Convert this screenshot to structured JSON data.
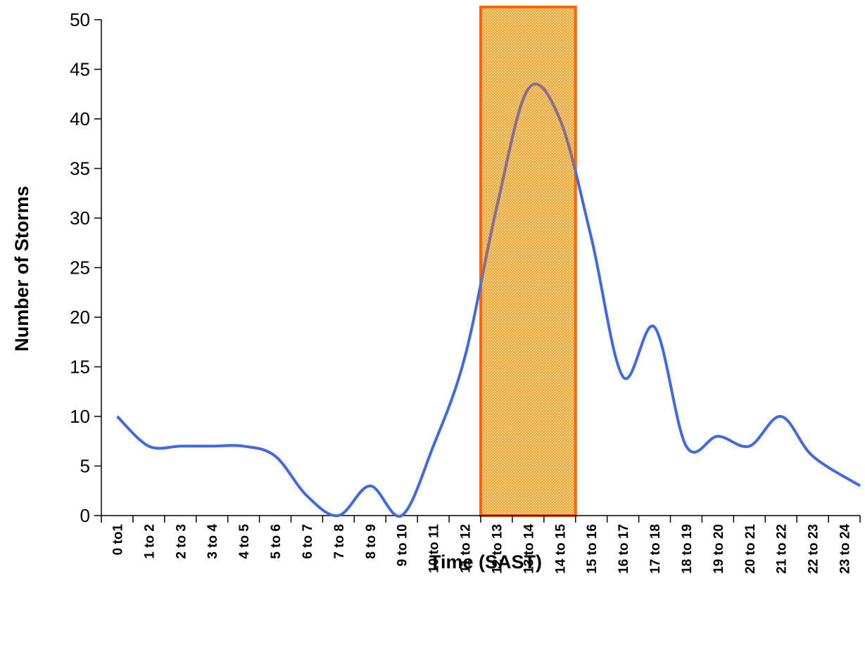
{
  "chart_data": {
    "type": "line",
    "title": "",
    "xlabel": "Time (SAST)",
    "ylabel": "Number of Storms",
    "ylim": [
      0,
      50
    ],
    "yticks": [
      0,
      5,
      10,
      15,
      20,
      25,
      30,
      35,
      40,
      45,
      50
    ],
    "grid": false,
    "legend": "none",
    "categories": [
      "0 to1",
      "1 to 2",
      "2 to 3",
      "3 to 4",
      "4 to 5",
      "5 to 6",
      "6 to 7",
      "7 to 8",
      "8 to 9",
      "9 to 10",
      "10 to 11",
      "11 to 12",
      "12 to 13",
      "13 to 14",
      "14 to 15",
      "15 to 16",
      "16 to 17",
      "17 to 18",
      "18 to 19",
      "19 to 20",
      "20 to 21",
      "21 to 22",
      "22 to 23",
      "23 to 24"
    ],
    "series": [
      {
        "values": [
          10,
          7,
          7,
          7,
          7,
          6,
          2,
          0,
          3,
          0,
          7,
          16,
          31,
          43,
          40,
          28,
          14,
          19,
          7,
          8,
          7,
          10,
          6,
          3
        ]
      }
    ],
    "highlight": {
      "from": "12 to 13",
      "to": "14 to 15"
    },
    "colors": {
      "line": "#4169E1",
      "highlight_border": "#FF6600",
      "highlight_fill": "#F5B041",
      "highlight_line": "#8C6E8C"
    }
  }
}
